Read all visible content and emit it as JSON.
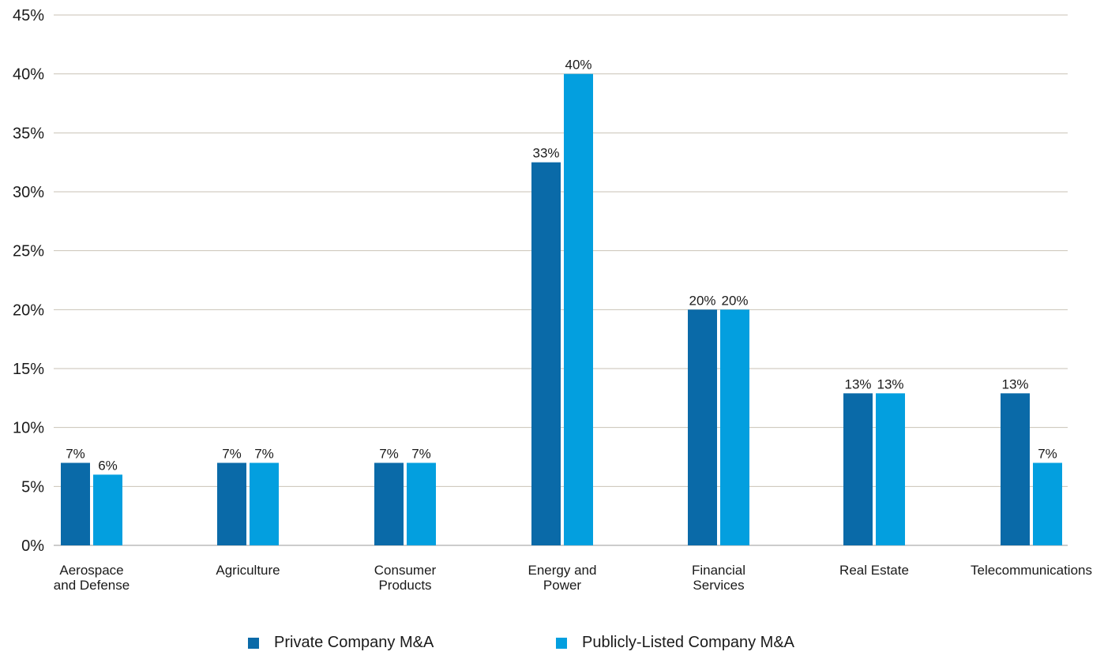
{
  "chart_data": {
    "type": "bar",
    "title": "",
    "xlabel": "",
    "ylabel": "",
    "ylim": [
      0,
      45
    ],
    "ytick_step": 5,
    "y_format": "percent",
    "grid": true,
    "legend_position": "bottom",
    "categories": [
      [
        "Aerospace",
        "and Defense"
      ],
      [
        "Agriculture"
      ],
      [
        "Consumer",
        "Products"
      ],
      [
        "Energy and",
        "Power"
      ],
      [
        "Financial",
        "Services"
      ],
      [
        "Real Estate"
      ],
      [
        "Telecommunications"
      ]
    ],
    "series": [
      {
        "name": "Private Company M&A",
        "color": "#0a6aa8",
        "values": [
          7,
          7,
          7,
          32.5,
          20,
          12.9,
          12.9
        ],
        "labels": [
          "7%",
          "7%",
          "7%",
          "33%",
          "20%",
          "13%",
          "13%"
        ]
      },
      {
        "name": "Publicly-Listed Company M&A",
        "color": "#039fdf",
        "values": [
          6,
          7,
          7,
          40,
          20,
          12.9,
          7
        ],
        "labels": [
          "6%",
          "7%",
          "7%",
          "40%",
          "20%",
          "13%",
          "7%"
        ]
      }
    ]
  },
  "legend": {
    "private_label": "Private Company M&A",
    "public_label": "Publicly-Listed Company M&A"
  }
}
